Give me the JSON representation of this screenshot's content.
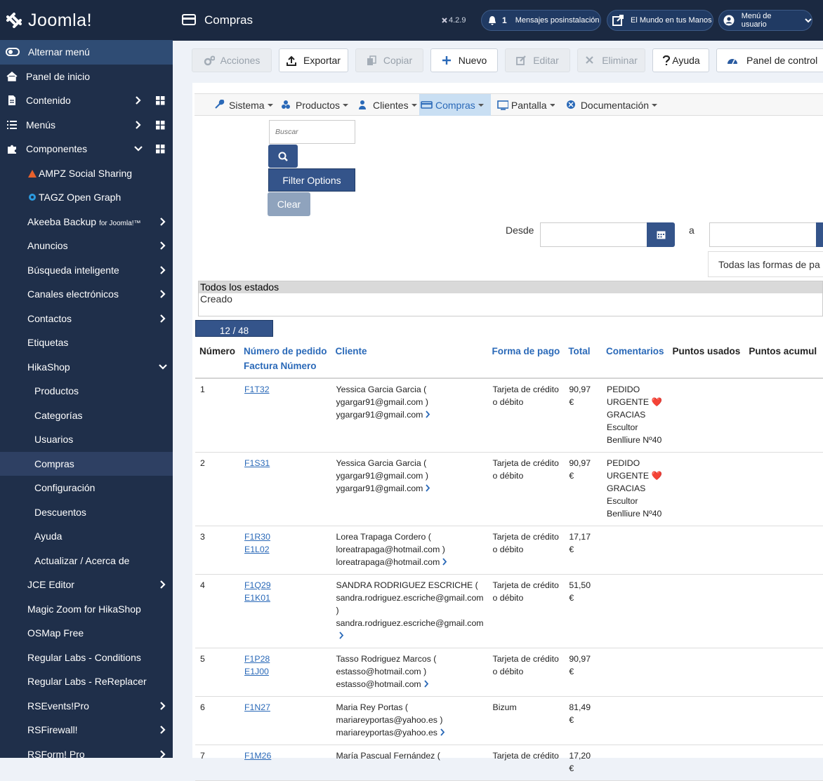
{
  "brand": "Joomla!",
  "header": {
    "title": "Compras",
    "version": "4.2.9",
    "notifications": {
      "count": 1,
      "label": "Mensajes posinstalación"
    },
    "site": "El Mundo en tus Manos",
    "user_menu": "Menú de usuario"
  },
  "sidebar": {
    "toggle": "Alternar menú",
    "items": [
      "Panel de inicio",
      "Contenido",
      "Menús",
      "Componentes",
      "AMPZ Social Sharing",
      "TAGZ Open Graph",
      {
        "label": "Akeeba Backup",
        "suffix": "for Joomla!™"
      },
      "Anuncios",
      "Búsqueda inteligente",
      "Canales electrónicos",
      "Contactos",
      "Etiquetas",
      "HikaShop",
      "Productos",
      "Categorías",
      "Usuarios",
      "Compras",
      "Configuración",
      "Descuentos",
      "Ayuda",
      "Actualizar / Acerca de",
      "JCE Editor",
      "Magic Zoom for HikaShop",
      "OSMap Free",
      "Regular Labs - Conditions",
      "Regular Labs - ReReplacer",
      "RSEvents!Pro",
      "RSFirewall!",
      "RSForm! Pro"
    ]
  },
  "toolbar": [
    "Acciones",
    "Exportar",
    "Copiar",
    "Nuevo",
    "Editar",
    "Eliminar",
    "Ayuda",
    "Panel de control"
  ],
  "menu": [
    "Sistema",
    "Productos",
    "Clientes",
    "Compras",
    "Pantalla",
    "Documentación"
  ],
  "filters": {
    "search_placeholder": "Buscar",
    "filter_options": "Filter Options",
    "clear": "Clear",
    "from": "Desde",
    "to": "a",
    "payment_select": "Todas las formas de pa",
    "statuses": [
      "Todos los estados",
      "Creado"
    ]
  },
  "pagination": "12 / 48",
  "table": {
    "columns": [
      "Número",
      {
        "label": "Número de pedido",
        "sub": "Factura Número"
      },
      "Cliente",
      "Forma de pago",
      "Total",
      "Comentarios",
      "Puntos usados",
      "Puntos acumul"
    ],
    "rows": [
      {
        "number": 1,
        "order": "F1T32",
        "client": [
          "Yessica Garcia Garcia (",
          "ygargar91@gmail.com )",
          "ygargar91@gmail.com"
        ],
        "payment": "Tarjeta de crédito o débito",
        "total": "90,97 €",
        "comments": "PEDIDO URGENTE ❤️ GRACIAS Escultor Benlliure Nº40"
      },
      {
        "number": 2,
        "order": "F1S31",
        "client": [
          "Yessica Garcia Garcia (",
          "ygargar91@gmail.com )",
          "ygargar91@gmail.com"
        ],
        "payment": "Tarjeta de crédito o débito",
        "total": "90,97 €",
        "comments": "PEDIDO URGENTE ❤️ GRACIAS Escultor Benlliure Nº40"
      },
      {
        "number": 3,
        "order": "F1R30",
        "invoice": "E1L02",
        "client": [
          "Lorea Trapaga Cordero (",
          "loreatrapaga@hotmail.com )",
          "loreatrapaga@hotmail.com"
        ],
        "payment": "Tarjeta de crédito o débito",
        "total": "17,17 €"
      },
      {
        "number": 4,
        "order": "F1Q29",
        "invoice": "E1K01",
        "client": [
          "SANDRA RODRIGUEZ ESCRICHE (",
          "sandra.rodriguez.escriche@gmail.com )",
          "sandra.rodriguez.escriche@gmail.com"
        ],
        "payment": "Tarjeta de crédito o débito",
        "total": "51,50 €"
      },
      {
        "number": 5,
        "order": "F1P28",
        "invoice": "E1J00",
        "client": [
          "Tasso Rodriguez Marcos (",
          "estasso@hotmail.com )",
          "estasso@hotmail.com"
        ],
        "payment": "Tarjeta de crédito o débito",
        "total": "90,97 €"
      },
      {
        "number": 6,
        "order": "F1N27",
        "client": [
          "Maria Rey Portas (",
          "mariareyportas@yahoo.es )",
          "mariareyportas@yahoo.es"
        ],
        "payment": "Bizum",
        "total": "81,49 €"
      },
      {
        "number": 7,
        "order": "F1M26",
        "client": [
          "María Pascual Fernández ("
        ],
        "payment": "Tarjeta de crédito",
        "total": "17,20 €"
      }
    ]
  }
}
